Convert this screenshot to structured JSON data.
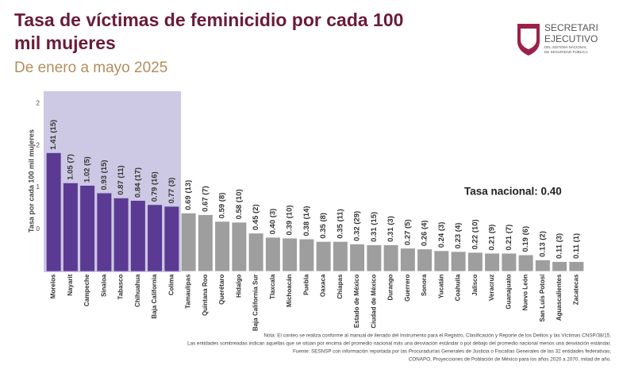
{
  "header": {
    "logo_line1": "SECRETARI",
    "logo_line2": "EJECUTIVO",
    "logo_line3": "DEL SISTEMA NACIONAL",
    "logo_line4": "DE SEGURIDAD PÚBLICA"
  },
  "chart_data": {
    "type": "bar",
    "title_line1": "Tasa de víctimas de feminicidio por cada 100",
    "title_line2": "mil mujeres",
    "subtitle": "De enero a mayo 2025",
    "y_label": "Tasa por cada 100 mil mujeres",
    "annotation": "Tasa nacional: 0.40",
    "categories": [
      "Morelos",
      "Nayarit",
      "Campeche",
      "Sinaloa",
      "Tabasco",
      "Chihuahua",
      "Baja California",
      "Colima",
      "Tamaulipas",
      "Quintana Roo",
      "Querétaro",
      "Hidalgo",
      "Baja California Sur",
      "Tlaxcala",
      "Michoacán",
      "Puebla",
      "Oaxaca",
      "Chiapas",
      "Estado de México",
      "Ciudad de México",
      "Durango",
      "Guerrero",
      "Sonora",
      "Yucatán",
      "Coahuila",
      "Jalisco",
      "Veracruz",
      "Guanajuato",
      "Nuevo León",
      "San Luis Potosí",
      "Aguascalientes",
      "Zacatecas"
    ],
    "values": [
      1.41,
      1.05,
      1.02,
      0.93,
      0.87,
      0.84,
      0.79,
      0.77,
      0.69,
      0.67,
      0.59,
      0.58,
      0.45,
      0.4,
      0.39,
      0.38,
      0.35,
      0.35,
      0.32,
      0.31,
      0.31,
      0.27,
      0.26,
      0.24,
      0.23,
      0.22,
      0.21,
      0.21,
      0.19,
      0.13,
      0.11,
      0.11
    ],
    "value_labels": [
      "1.41 (15)",
      "1.05 (7)",
      "1.02 (5)",
      "0.93 (15)",
      "0.87 (11)",
      "0.84 (17)",
      "0.79 (16)",
      "0.77 (3)",
      "0.69 (13)",
      "0.67 (7)",
      "0.59 (8)",
      "0.58 (10)",
      "0.45 (2)",
      "0.40 (3)",
      "0.39 (10)",
      "0.38 (14)",
      "0.35 (8)",
      "0.35 (11)",
      "0.32 (29)",
      "0.31 (15)",
      "0.31 (3)",
      "0.27 (5)",
      "0.26 (4)",
      "0.24 (3)",
      "0.23 (4)",
      "0.22 (10)",
      "0.21 (9)",
      "0.21 (7)",
      "0.19 (6)",
      "0.13 (2)",
      "0.11 (3)",
      "0.11 (1)"
    ],
    "colors": [
      "#5b3a93",
      "#5b3a93",
      "#5b3a93",
      "#5b3a93",
      "#5b3a93",
      "#5b3a93",
      "#5b3a93",
      "#5b3a93",
      "#9e9e9e",
      "#9e9e9e",
      "#9e9e9e",
      "#9e9e9e",
      "#9e9e9e",
      "#9e9e9e",
      "#9e9e9e",
      "#9e9e9e",
      "#9e9e9e",
      "#9e9e9e",
      "#9e9e9e",
      "#9e9e9e",
      "#9e9e9e",
      "#9e9e9e",
      "#9e9e9e",
      "#9e9e9e",
      "#9e9e9e",
      "#9e9e9e",
      "#9e9e9e",
      "#9e9e9e",
      "#9e9e9e",
      "#9e9e9e",
      "#9e9e9e",
      "#9e9e9e"
    ],
    "ylim": [
      0,
      2.1
    ],
    "yticks": [
      {
        "value": 2,
        "label": "2"
      },
      {
        "value": 1.5,
        "label": "2"
      },
      {
        "value": 1,
        "label": "1"
      },
      {
        "value": 0.5,
        "label": "0"
      }
    ],
    "notes": [
      "Nota: El conteo se realiza conforme al manual de llenado del Instrumento para el Registro, Clasificación y Reporte de los Delitos y las Víctimas CNSP/38/15.",
      "Las entidades sombreadas indican aquellas que se sitúan por encima del promedio nacional más una desviación estándar o por debajo del promedio nacional menos una desviación estándar.",
      "Fuente: SESNSP con información reportada por las Procuradurías Generales de Justicia o Fiscalías Generales de las 32 entidades federativas;",
      "CONAPO, Proyecciones de Población de México para los años 2020 a 2070, mitad de año."
    ]
  }
}
